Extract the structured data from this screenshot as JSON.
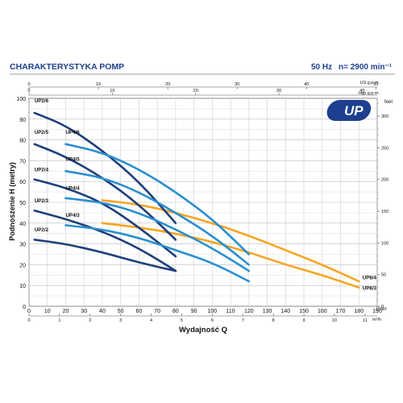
{
  "header": {
    "title": "CHARAKTERYSTYKA POMP",
    "frequency": "50 Hz",
    "speed": "n= 2900 min⁻¹"
  },
  "logo": {
    "text": "UP"
  },
  "colors": {
    "accent": "#1e3f8f",
    "dark_blue": "#1f3f7a",
    "light_blue": "#2a8fd0",
    "orange": "#f5a623",
    "grid": "#cfcfcf"
  },
  "chart_data": {
    "type": "line",
    "xlabel": "Wydajność Q",
    "ylabel": "Podnoszenie H (metry)",
    "x_unit": "l/min",
    "x_unit2": "m³/h",
    "top_unit1": "US g.p.m.",
    "top_unit2": "Imp g.p.m.",
    "right_unit": "feet",
    "xlim": [
      0,
      190
    ],
    "ylim": [
      0,
      100
    ],
    "grid": true,
    "x_ticks": [
      0,
      10,
      20,
      30,
      40,
      50,
      60,
      70,
      80,
      90,
      100,
      110,
      120,
      130,
      140,
      150,
      160,
      170,
      180,
      190
    ],
    "y_ticks": [
      0,
      10,
      20,
      30,
      40,
      50,
      60,
      70,
      80,
      90,
      100
    ],
    "m3h_ticks": [
      0,
      1,
      2,
      3,
      4,
      5,
      6,
      7,
      8,
      9,
      10,
      11
    ],
    "us_gpm_ticks": [
      0,
      10,
      20,
      30,
      40,
      50
    ],
    "imp_gpm_ticks": [
      0,
      10,
      20,
      30,
      40
    ],
    "feet_ticks": [
      0,
      50,
      100,
      150,
      200,
      250,
      300
    ],
    "series": [
      {
        "name": "UP2/6",
        "color": "dark",
        "x": [
          3,
          20,
          40,
          60,
          80
        ],
        "y": [
          93,
          87,
          75,
          60,
          40
        ],
        "label_x": 3,
        "label_y": 98
      },
      {
        "name": "UP2/5",
        "color": "dark",
        "x": [
          3,
          20,
          40,
          60,
          80
        ],
        "y": [
          78,
          72,
          62,
          49,
          32
        ],
        "label_x": 3,
        "label_y": 83
      },
      {
        "name": "UP2/4",
        "color": "dark",
        "x": [
          3,
          20,
          40,
          60,
          80
        ],
        "y": [
          61,
          57,
          50,
          38,
          24
        ],
        "label_x": 3,
        "label_y": 65
      },
      {
        "name": "UP2/3",
        "color": "dark",
        "x": [
          3,
          20,
          40,
          60,
          80
        ],
        "y": [
          46,
          42,
          36,
          28,
          17
        ],
        "label_x": 3,
        "label_y": 50
      },
      {
        "name": "UP2/2",
        "color": "dark",
        "x": [
          3,
          20,
          40,
          60,
          80
        ],
        "y": [
          32,
          30,
          26,
          21,
          17
        ],
        "label_x": 3,
        "label_y": 36
      },
      {
        "name": "UP4/6",
        "color": "light",
        "x": [
          20,
          40,
          60,
          80,
          100,
          120
        ],
        "y": [
          78,
          74,
          66,
          55,
          42,
          25
        ],
        "label_x": 20,
        "label_y": 83
      },
      {
        "name": "UP4/5",
        "color": "light",
        "x": [
          20,
          40,
          60,
          80,
          100,
          120
        ],
        "y": [
          65,
          62,
          55,
          45,
          34,
          20
        ],
        "label_x": 20,
        "label_y": 70
      },
      {
        "name": "UP4/4",
        "color": "light",
        "x": [
          20,
          40,
          60,
          80,
          100,
          120
        ],
        "y": [
          52,
          50,
          45,
          37,
          28,
          17
        ],
        "label_x": 20,
        "label_y": 56
      },
      {
        "name": "UP4/3",
        "color": "light",
        "x": [
          20,
          40,
          60,
          80,
          100,
          120
        ],
        "y": [
          39,
          37,
          33,
          27,
          21,
          12
        ],
        "label_x": 20,
        "label_y": 43
      },
      {
        "name": "UP8/4",
        "color": "orange",
        "x": [
          40,
          60,
          80,
          100,
          120,
          140,
          160,
          180
        ],
        "y": [
          51,
          49,
          45,
          40,
          34,
          27,
          20,
          12
        ],
        "label_x": 182,
        "label_y": 13
      },
      {
        "name": "UP8/3",
        "color": "orange",
        "x": [
          40,
          60,
          80,
          100,
          120,
          140,
          160,
          180
        ],
        "y": [
          40,
          38,
          35,
          31,
          26,
          20,
          15,
          9
        ],
        "label_x": 182,
        "label_y": 8
      }
    ]
  }
}
